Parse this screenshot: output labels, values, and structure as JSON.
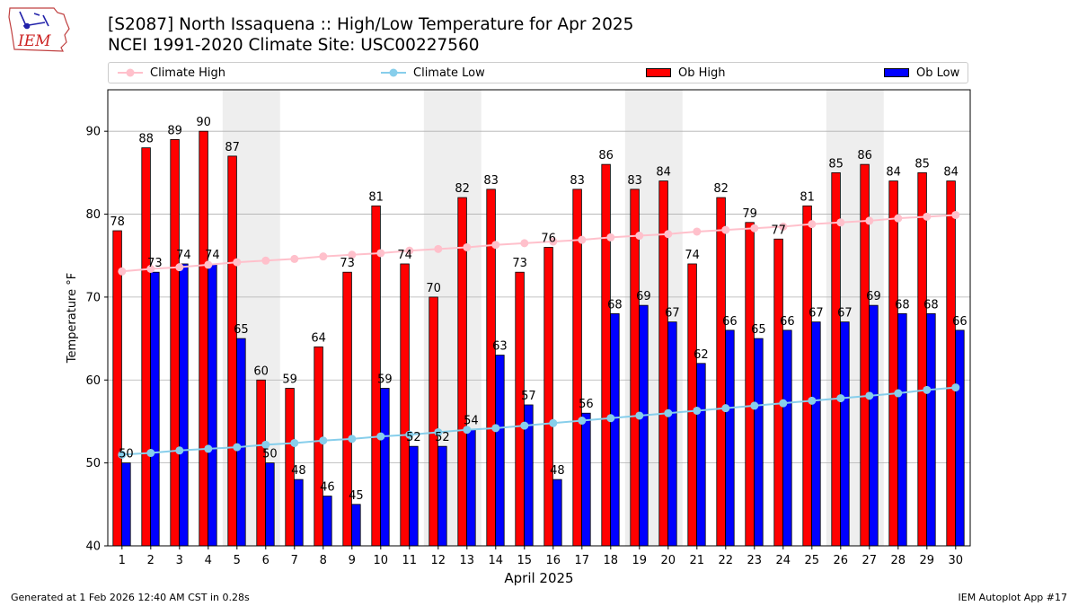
{
  "header": {
    "title_line1": "[S2087] North Issaquena :: High/Low Temperature for Apr 2025",
    "title_line2": "NCEI 1991-2020 Climate Site: USC00227560",
    "logo_text": "IEM"
  },
  "legend": {
    "climate_high": "Climate High",
    "climate_low": "Climate Low",
    "ob_high": "Ob High",
    "ob_low": "Ob Low"
  },
  "footer": {
    "generated": "Generated at 1 Feb 2026 12:40 AM CST in 0.28s",
    "app": "IEM Autoplot App #17"
  },
  "colors": {
    "ob_high": "#ff0000",
    "ob_low": "#0000ff",
    "climate_high": "#ffc0cb",
    "climate_low": "#87ceeb",
    "weekend_shade": "#eeeeee",
    "grid": "#b0b0b0"
  },
  "chart_data": {
    "type": "bar",
    "xlabel": "April 2025",
    "ylabel": "Temperature °F",
    "ylim": [
      40,
      95
    ],
    "yticks": [
      40,
      50,
      60,
      70,
      80,
      90
    ],
    "grid": true,
    "legend_position": "top",
    "categories": [
      "1",
      "2",
      "3",
      "4",
      "5",
      "6",
      "7",
      "8",
      "9",
      "10",
      "11",
      "12",
      "13",
      "14",
      "15",
      "16",
      "17",
      "18",
      "19",
      "20",
      "21",
      "22",
      "23",
      "24",
      "25",
      "26",
      "27",
      "28",
      "29",
      "30"
    ],
    "weekend_days": [
      5,
      6,
      12,
      13,
      19,
      20,
      26,
      27
    ],
    "series": [
      {
        "name": "Ob High",
        "kind": "bar",
        "values": [
          78,
          88,
          89,
          90,
          87,
          60,
          59,
          64,
          73,
          81,
          74,
          70,
          82,
          83,
          73,
          76,
          83,
          86,
          83,
          84,
          74,
          82,
          79,
          77,
          81,
          85,
          86,
          84,
          85,
          84
        ]
      },
      {
        "name": "Ob Low",
        "kind": "bar",
        "values": [
          50,
          73,
          74,
          74,
          65,
          50,
          48,
          46,
          45,
          59,
          52,
          52,
          54,
          63,
          57,
          48,
          56,
          68,
          69,
          67,
          62,
          66,
          65,
          66,
          67,
          67,
          69,
          68,
          68,
          66
        ]
      },
      {
        "name": "Climate High",
        "kind": "line",
        "values": [
          73.1,
          73.4,
          73.6,
          73.9,
          74.2,
          74.4,
          74.6,
          74.9,
          75.1,
          75.3,
          75.6,
          75.8,
          76.0,
          76.3,
          76.5,
          76.7,
          76.9,
          77.2,
          77.4,
          77.6,
          77.9,
          78.1,
          78.3,
          78.5,
          78.8,
          79.0,
          79.2,
          79.5,
          79.7,
          79.9
        ]
      },
      {
        "name": "Climate Low",
        "kind": "line",
        "values": [
          51.0,
          51.2,
          51.5,
          51.7,
          51.9,
          52.2,
          52.4,
          52.7,
          52.9,
          53.2,
          53.4,
          53.7,
          54.0,
          54.2,
          54.5,
          54.8,
          55.1,
          55.4,
          55.7,
          56.0,
          56.3,
          56.6,
          56.9,
          57.2,
          57.5,
          57.8,
          58.1,
          58.4,
          58.8,
          59.1
        ]
      }
    ]
  }
}
